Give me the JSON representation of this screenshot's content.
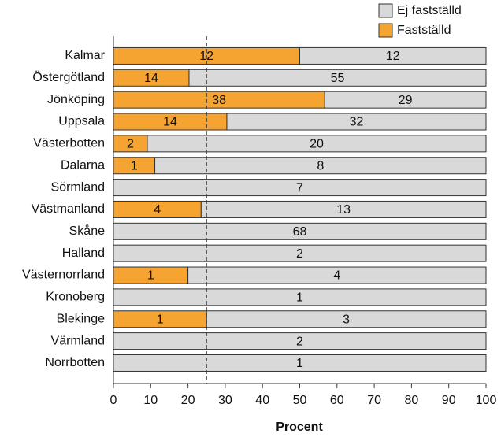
{
  "chart_data": {
    "type": "bar",
    "orientation": "horizontal",
    "stacking": "percent",
    "xlabel": "Procent",
    "categories": [
      "Kalmar",
      "Östergötland",
      "Jönköping",
      "Uppsala",
      "Västerbotten",
      "Dalarna",
      "Sörmland",
      "Västmanland",
      "Skåne",
      "Halland",
      "Västernorrland",
      "Kronoberg",
      "Blekinge",
      "Värmland",
      "Norrbotten"
    ],
    "series": [
      {
        "name": "Fastställd",
        "color": "#f5a431",
        "values": [
          12,
          14,
          38,
          14,
          2,
          1,
          null,
          4,
          null,
          null,
          1,
          null,
          1,
          null,
          null
        ]
      },
      {
        "name": "Ej fastställd",
        "color": "#d9d9d9",
        "values": [
          12,
          55,
          29,
          32,
          20,
          8,
          7,
          13,
          68,
          2,
          4,
          1,
          3,
          2,
          1
        ]
      }
    ],
    "xlim": [
      0,
      100
    ],
    "xticks": [
      0,
      10,
      20,
      30,
      40,
      50,
      60,
      70,
      80,
      90,
      100
    ],
    "reference_line": 25,
    "legend": "top-right"
  }
}
